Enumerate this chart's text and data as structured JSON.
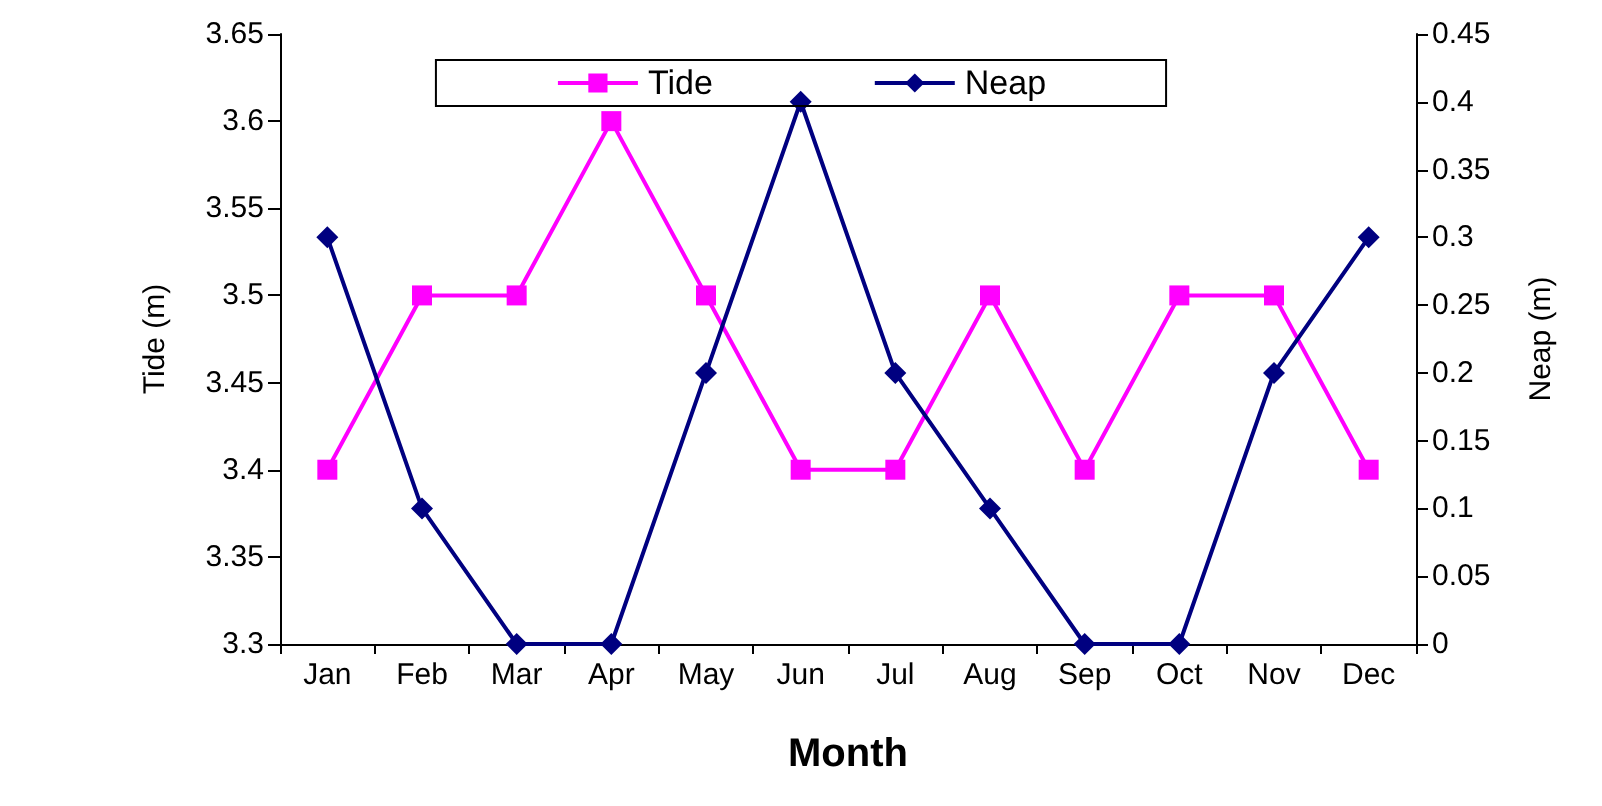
{
  "chart_data": {
    "type": "line",
    "xlabel": "Month",
    "ylabel": "Tide (m)",
    "y2label": "Neap (m)",
    "categories": [
      "Jan",
      "Feb",
      "Mar",
      "Apr",
      "May",
      "Jun",
      "Jul",
      "Aug",
      "Sep",
      "Oct",
      "Nov",
      "Dec"
    ],
    "series": [
      {
        "name": "Tide",
        "color": "#ff00ff",
        "marker": "square",
        "values": [
          3.4,
          3.5,
          3.5,
          3.6,
          3.5,
          3.4,
          3.4,
          3.5,
          3.4,
          3.5,
          3.5,
          3.4
        ]
      },
      {
        "name": "Neap",
        "color": "#000080",
        "marker": "diamond",
        "axis": "y2",
        "values": [
          0.3,
          0.1,
          0,
          0,
          0.2,
          0.4,
          0.2,
          0.1,
          0,
          0,
          0.2,
          0.3
        ]
      }
    ],
    "ylim": [
      3.3,
      3.65
    ],
    "yticks": [
      3.3,
      3.35,
      3.4,
      3.45,
      3.5,
      3.55,
      3.6,
      3.65
    ],
    "y2lim": [
      0,
      0.45
    ],
    "y2ticks": [
      0,
      0.05,
      0.1,
      0.15,
      0.2,
      0.25,
      0.3,
      0.35,
      0.4,
      0.45
    ],
    "grid": false,
    "legend": "top",
    "line_style": "solid"
  }
}
